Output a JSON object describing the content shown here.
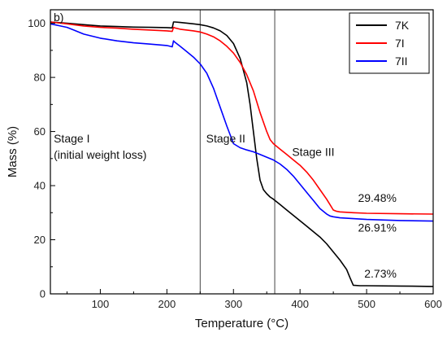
{
  "chart_data": {
    "type": "line",
    "panel_label": "b)",
    "xlabel": "Temperature (°C)",
    "ylabel": "Mass (%)",
    "xlim": [
      25,
      600
    ],
    "ylim": [
      0,
      105
    ],
    "x_ticks": [
      100,
      200,
      300,
      400,
      500,
      600
    ],
    "y_ticks": [
      0,
      20,
      40,
      60,
      80,
      100
    ],
    "grid": false,
    "legend_position": "top-right",
    "stage_boundaries": [
      250,
      362
    ],
    "stage_labels": [
      {
        "lines": [
          "Stage I",
          "(initial weight loss)"
        ],
        "x": 30,
        "y": 56
      },
      {
        "lines": [
          "Stage II"
        ],
        "x": 259,
        "y": 56
      },
      {
        "lines": [
          "Stage III"
        ],
        "x": 388,
        "y": 51
      }
    ],
    "residue_labels": [
      {
        "text": "29.48%",
        "x": 545,
        "y": 34,
        "color": "#000000"
      },
      {
        "text": "26.91%",
        "x": 545,
        "y": 23,
        "color": "#000000"
      },
      {
        "text": "2.73%",
        "x": 545,
        "y": 6,
        "color": "#000000"
      }
    ],
    "series": [
      {
        "name": "7K",
        "color": "#000000",
        "x": [
          25,
          50,
          75,
          100,
          125,
          150,
          175,
          200,
          208,
          210,
          212,
          220,
          240,
          250,
          260,
          270,
          280,
          290,
          300,
          310,
          320,
          325,
          330,
          335,
          340,
          345,
          350,
          355,
          360,
          370,
          380,
          390,
          400,
          410,
          420,
          430,
          440,
          450,
          460,
          470,
          475,
          480,
          490,
          500,
          550,
          600
        ],
        "y": [
          100.5,
          100,
          99.5,
          99,
          98.8,
          98.6,
          98.5,
          98.4,
          98.3,
          100.5,
          100.5,
          100.3,
          99.8,
          99.5,
          99,
          98.3,
          97.2,
          95.5,
          92.5,
          87,
          78,
          70,
          60,
          50,
          42,
          38.5,
          37,
          35.8,
          35,
          33,
          31,
          29,
          27,
          25,
          23,
          21,
          18.5,
          15.5,
          12.5,
          9,
          6,
          3.2,
          3,
          3,
          2.9,
          2.73
        ]
      },
      {
        "name": "7I",
        "color": "#ff0000",
        "x": [
          25,
          50,
          75,
          100,
          125,
          150,
          175,
          200,
          208,
          210,
          212,
          220,
          240,
          250,
          260,
          270,
          280,
          290,
          300,
          310,
          320,
          330,
          340,
          350,
          355,
          360,
          370,
          380,
          390,
          400,
          410,
          420,
          430,
          440,
          445,
          450,
          455,
          460,
          480,
          500,
          550,
          600
        ],
        "y": [
          100.5,
          99.8,
          99,
          98.5,
          98.2,
          97.8,
          97.5,
          97.2,
          97,
          98.5,
          98.3,
          97.8,
          97.2,
          96.8,
          96,
          95,
          93.5,
          91.5,
          89,
          85.5,
          81,
          75,
          67,
          60,
          57,
          55.5,
          53.5,
          51.5,
          49.5,
          47.5,
          45,
          42,
          38.5,
          35,
          33,
          31,
          30.5,
          30.3,
          30,
          29.8,
          29.6,
          29.48
        ]
      },
      {
        "name": "7II",
        "color": "#0000ff",
        "x": [
          25,
          40,
          50,
          60,
          75,
          100,
          125,
          150,
          175,
          200,
          208,
          210,
          212,
          220,
          230,
          240,
          250,
          260,
          270,
          280,
          290,
          300,
          310,
          320,
          330,
          340,
          350,
          360,
          370,
          380,
          390,
          400,
          410,
          420,
          430,
          440,
          445,
          450,
          455,
          460,
          480,
          500,
          550,
          600
        ],
        "y": [
          99.8,
          99,
          98.5,
          97.5,
          96,
          94.5,
          93.5,
          92.8,
          92.3,
          91.8,
          91.3,
          93.5,
          93,
          91.5,
          89.5,
          87.5,
          85,
          81.5,
          76,
          69,
          62,
          55.5,
          54,
          53.2,
          52.5,
          51.5,
          50.5,
          49.5,
          48,
          46,
          43.5,
          40.5,
          37.5,
          34.5,
          31.5,
          29.5,
          28.8,
          28.5,
          28.3,
          28.1,
          27.8,
          27.5,
          27.1,
          26.91
        ]
      }
    ]
  }
}
